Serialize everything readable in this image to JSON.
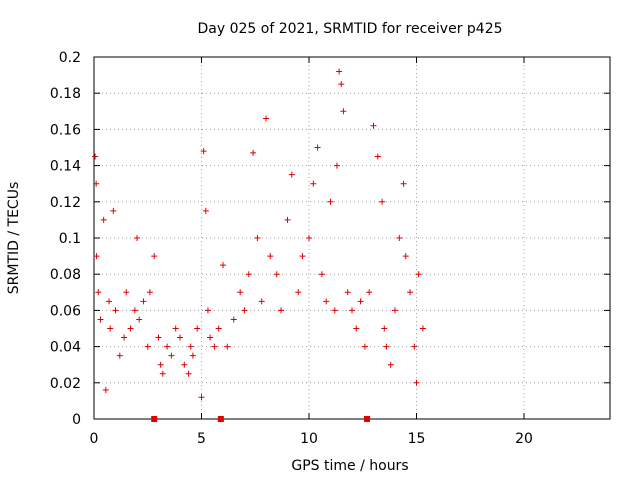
{
  "chart_data": {
    "type": "scatter",
    "title": "Day 025 of 2021, SRMTID for receiver p425",
    "xlabel": "GPS time / hours",
    "ylabel": "SRMTID / TECUs",
    "xlim": [
      0,
      24
    ],
    "ylim": [
      0,
      0.2
    ],
    "xticks": [
      0,
      5,
      10,
      15,
      20
    ],
    "xtick_labels": [
      "0",
      "5",
      "10",
      "15",
      "20"
    ],
    "yticks": [
      0,
      0.02,
      0.04,
      0.06,
      0.08,
      0.1,
      0.12,
      0.14,
      0.16,
      0.18,
      0.2
    ],
    "ytick_labels": [
      "0",
      "0.02",
      "0.04",
      "0.06",
      "0.08",
      "0.1",
      "0.12",
      "0.14",
      "0.16",
      "0.18",
      "0.2"
    ],
    "grid": true,
    "marker": "+",
    "color": "#e00000",
    "series": [
      {
        "name": "SRMTID",
        "x": [
          0.05,
          0.1,
          0.12,
          0.2,
          0.3,
          0.45,
          0.55,
          0.7,
          0.75,
          0.9,
          1.0,
          1.2,
          1.4,
          1.5,
          1.7,
          1.9,
          2.0,
          2.1,
          2.3,
          2.5,
          2.6,
          2.8,
          3.0,
          3.1,
          3.2,
          3.4,
          3.6,
          3.8,
          4.0,
          4.2,
          4.4,
          4.5,
          4.6,
          4.8,
          5.0,
          5.1,
          5.2,
          5.3,
          5.4,
          5.6,
          5.8,
          6.0,
          6.2,
          6.5,
          6.8,
          7.0,
          7.2,
          7.4,
          7.6,
          7.8,
          8.0,
          8.2,
          8.5,
          8.7,
          9.0,
          9.2,
          9.5,
          9.7,
          10.0,
          10.2,
          10.4,
          10.6,
          10.8,
          11.0,
          11.2,
          11.3,
          11.4,
          11.5,
          11.6,
          11.8,
          12.0,
          12.2,
          12.4,
          12.6,
          12.8,
          13.0,
          13.2,
          13.4,
          13.5,
          13.6,
          13.8,
          14.0,
          14.2,
          14.4,
          14.5,
          14.7,
          14.9,
          15.0,
          15.1,
          15.3
        ],
        "y": [
          0.145,
          0.13,
          0.09,
          0.07,
          0.055,
          0.11,
          0.016,
          0.065,
          0.05,
          0.115,
          0.06,
          0.035,
          0.045,
          0.07,
          0.05,
          0.06,
          0.1,
          0.055,
          0.065,
          0.04,
          0.07,
          0.09,
          0.045,
          0.03,
          0.025,
          0.04,
          0.035,
          0.05,
          0.045,
          0.03,
          0.025,
          0.04,
          0.035,
          0.05,
          0.012,
          0.148,
          0.115,
          0.06,
          0.045,
          0.04,
          0.05,
          0.085,
          0.04,
          0.055,
          0.07,
          0.06,
          0.08,
          0.147,
          0.1,
          0.065,
          0.166,
          0.09,
          0.08,
          0.06,
          0.11,
          0.135,
          0.07,
          0.09,
          0.1,
          0.13,
          0.15,
          0.08,
          0.065,
          0.12,
          0.06,
          0.14,
          0.192,
          0.185,
          0.17,
          0.07,
          0.06,
          0.05,
          0.065,
          0.04,
          0.07,
          0.162,
          0.145,
          0.12,
          0.05,
          0.04,
          0.03,
          0.06,
          0.1,
          0.13,
          0.09,
          0.07,
          0.04,
          0.02,
          0.08,
          0.05
        ]
      }
    ],
    "axis_markers": [
      {
        "x": 2.8
      },
      {
        "x": 5.9
      },
      {
        "x": 12.7
      }
    ]
  }
}
